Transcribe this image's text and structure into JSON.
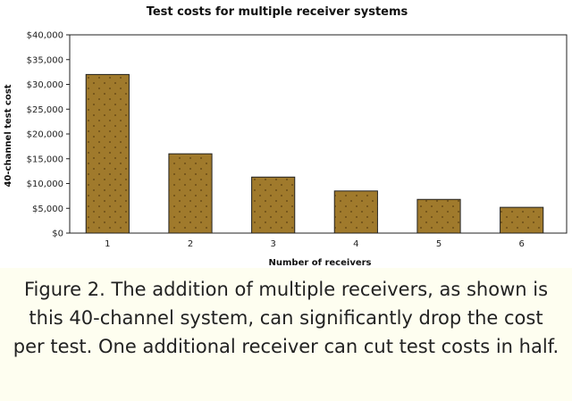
{
  "chart_data": {
    "type": "bar",
    "title": "Test costs for multiple receiver systems",
    "xlabel": "Number of receivers",
    "ylabel": "40-channel test cost",
    "categories": [
      "1",
      "2",
      "3",
      "4",
      "5",
      "6"
    ],
    "values": [
      32000,
      16000,
      11300,
      8500,
      6800,
      5200
    ],
    "ylim": [
      0,
      40000
    ],
    "yticks": [
      0,
      5000,
      10000,
      15000,
      20000,
      25000,
      30000,
      35000,
      40000
    ],
    "ytick_labels": [
      "$0",
      "$5,000",
      "$10,000",
      "$15,000",
      "$20,000",
      "$25,000",
      "$30,000",
      "$35,000",
      "$40,000"
    ],
    "grid": false,
    "legend": "none",
    "bar_color": "#a07a2c",
    "bar_border_color": "#222222"
  },
  "caption": "Figure 2. The addition of multiple receivers, as shown is this 40-channel system, can significantly drop the cost per test. One additional receiver can cut test costs in half."
}
